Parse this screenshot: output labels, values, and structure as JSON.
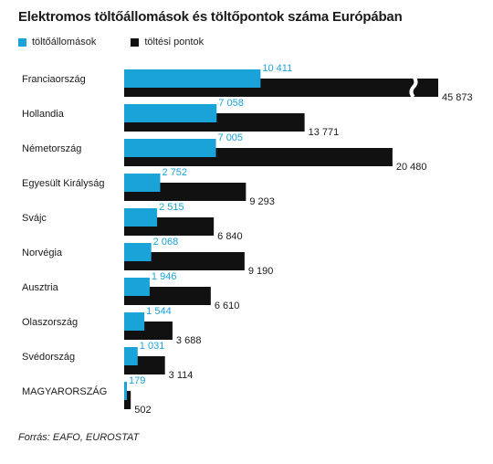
{
  "chart_data": {
    "type": "bar",
    "title": "Elektromos töltőállomások és töltőpontok száma Európában",
    "categories": [
      "Franciaország",
      "Hollandia",
      "Németország",
      "Egyesült Királyság",
      "Svájc",
      "Norvégia",
      "Ausztria",
      "Olaszország",
      "Svédország",
      "MAGYARORSZÁG"
    ],
    "series": [
      {
        "name": "töltőállomások",
        "color": "#1aa3d9",
        "values": [
          10411,
          7058,
          7005,
          2752,
          2515,
          2068,
          1946,
          1544,
          1031,
          179
        ],
        "labels": [
          "10 411",
          "7 058",
          "7 005",
          "2 752",
          "2 515",
          "2 068",
          "1 946",
          "1 544",
          "1 031",
          "179"
        ]
      },
      {
        "name": "töltési pontok",
        "color": "#111111",
        "values": [
          45873,
          13771,
          20480,
          9293,
          6840,
          9190,
          6610,
          3688,
          3114,
          502
        ],
        "labels": [
          "45 873",
          "13 771",
          "20 480",
          "9 293",
          "6 840",
          "9 190",
          "6 610",
          "3 688",
          "3 114",
          "502"
        ]
      }
    ],
    "axis_break": {
      "series": "töltési pontok",
      "category": "Franciaország"
    },
    "grid": false,
    "legend_position": "top-left",
    "source": "Forrás: EAFO, EUROSTAT"
  }
}
